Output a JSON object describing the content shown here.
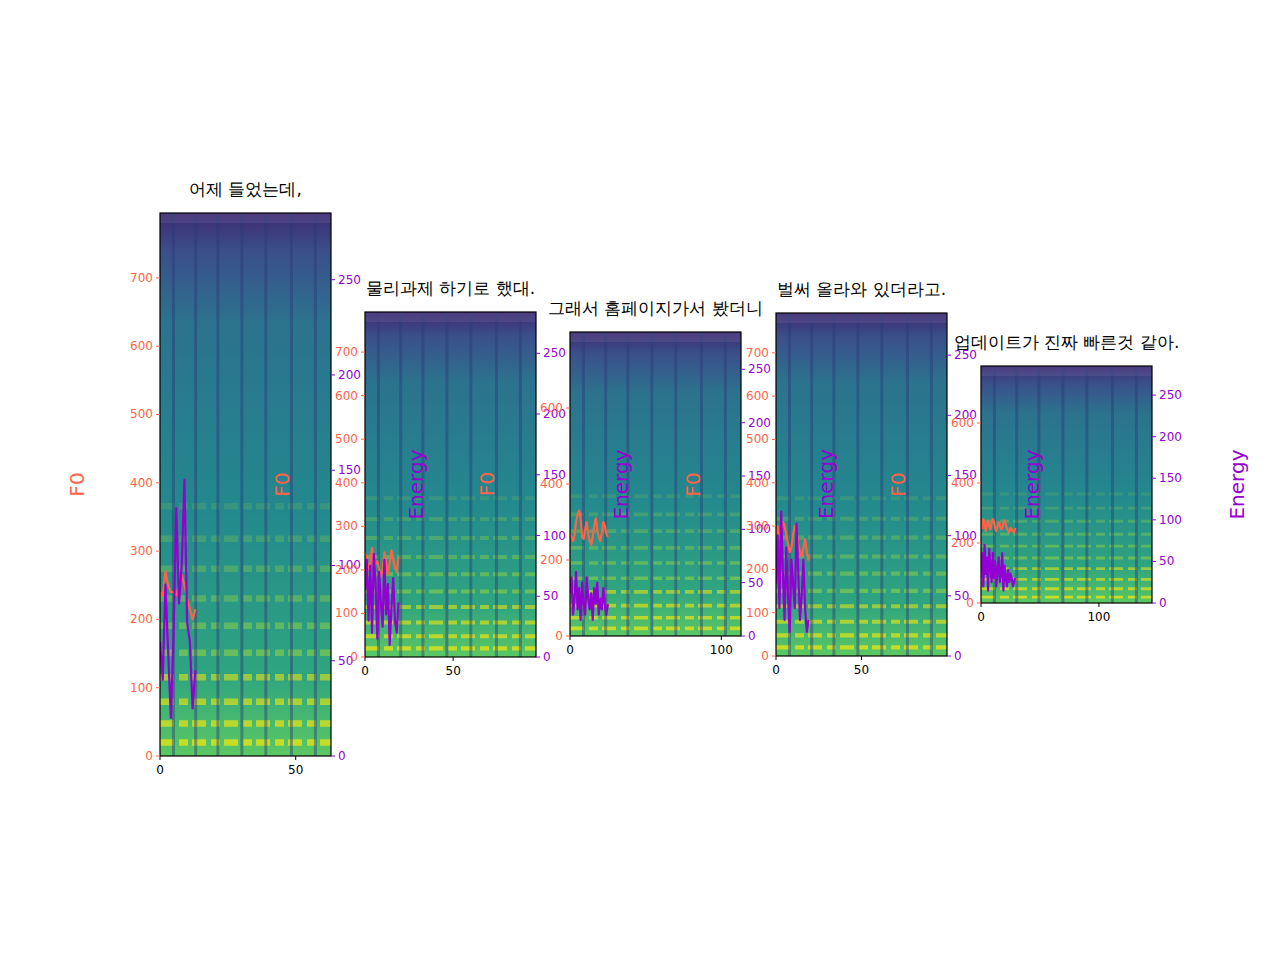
{
  "chart_data": [
    {
      "type": "line",
      "title": "어제 들었는데,",
      "xlim": [
        0,
        63
      ],
      "xticks": [
        0,
        50
      ],
      "ylim": [
        0,
        795
      ],
      "yticks": [
        0,
        100,
        200,
        300,
        400,
        500,
        600,
        700
      ],
      "y2lim": [
        0,
        285
      ],
      "y2ticks": [
        0,
        50,
        100,
        150,
        200,
        250
      ],
      "series": [
        {
          "name": "F0",
          "color": "#ff6347",
          "values": [
            240,
            235,
            270,
            250,
            240,
            240,
            235,
            250,
            265,
            250,
            230,
            215,
            200,
            215
          ]
        },
        {
          "name": "Energy",
          "color": "#9400d3",
          "axis": "y2",
          "values": [
            60,
            40,
            90,
            55,
            20,
            65,
            130,
            80,
            100,
            145,
            70,
            60,
            25,
            45
          ]
        }
      ]
    },
    {
      "type": "line",
      "title": "물리과제 하기로 했대.",
      "xlim": [
        0,
        97
      ],
      "xticks": [
        0,
        50
      ],
      "ylim": [
        0,
        792
      ],
      "yticks": [
        0,
        100,
        200,
        300,
        400,
        500,
        600,
        700
      ],
      "y2lim": [
        0,
        284
      ],
      "y2ticks": [
        0,
        50,
        100,
        150,
        200,
        250
      ],
      "series": [
        {
          "name": "F0",
          "color": "#ff6347",
          "values": [
            240,
            225,
            200,
            215,
            250,
            205,
            215,
            220,
            200,
            185,
            200,
            240,
            215,
            190,
            215,
            245,
            225,
            205,
            195,
            230
          ]
        },
        {
          "name": "Energy",
          "color": "#9400d3",
          "axis": "y2",
          "values": [
            55,
            80,
            30,
            75,
            20,
            85,
            60,
            15,
            70,
            45,
            25,
            80,
            35,
            60,
            10,
            40,
            65,
            30,
            20,
            45
          ]
        }
      ]
    },
    {
      "type": "line",
      "title": "그래서 홈페이지가서 봤더니",
      "xlim": [
        0,
        113
      ],
      "xticks": [
        0,
        100
      ],
      "ylim": [
        0,
        800
      ],
      "yticks": [
        0,
        200,
        400,
        600
      ],
      "y2lim": [
        0,
        285
      ],
      "y2ticks": [
        0,
        50,
        100,
        150,
        200,
        250
      ],
      "series": [
        {
          "name": "F0",
          "color": "#ff6347",
          "values": [
            270,
            260,
            250,
            265,
            300,
            320,
            330,
            310,
            260,
            255,
            280,
            300,
            270,
            250,
            240,
            260,
            290,
            310,
            280,
            260,
            250,
            270,
            300,
            290,
            270,
            260
          ]
        },
        {
          "name": "Energy",
          "color": "#9400d3",
          "axis": "y2",
          "values": [
            40,
            55,
            20,
            35,
            60,
            25,
            45,
            15,
            50,
            30,
            20,
            55,
            35,
            25,
            40,
            15,
            45,
            30,
            50,
            20,
            35,
            25,
            45,
            30,
            20,
            30
          ]
        }
      ]
    },
    {
      "type": "line",
      "title": "벌써 올라와 있더라고.",
      "xlim": [
        0,
        100
      ],
      "xticks": [
        0,
        50
      ],
      "ylim": [
        0,
        792
      ],
      "yticks": [
        0,
        100,
        200,
        300,
        400,
        500,
        600,
        700
      ],
      "y2lim": [
        0,
        285
      ],
      "y2ticks": [
        0,
        50,
        100,
        150,
        200,
        250
      ],
      "series": [
        {
          "name": "F0",
          "color": "#ff6347",
          "values": [
            280,
            300,
            270,
            290,
            310,
            300,
            280,
            260,
            240,
            250,
            280,
            300,
            290,
            260,
            240,
            230,
            250,
            270,
            240,
            220
          ]
        },
        {
          "name": "Energy",
          "color": "#9400d3",
          "axis": "y2",
          "values": [
            60,
            100,
            40,
            120,
            70,
            30,
            90,
            50,
            20,
            80,
            60,
            40,
            110,
            70,
            30,
            50,
            80,
            40,
            20,
            30
          ]
        }
      ]
    },
    {
      "type": "line",
      "title": "업데이트가 진짜 빠른것 같아.",
      "xlim": [
        0,
        145
      ],
      "xticks": [
        0,
        100
      ],
      "ylim": [
        0,
        790
      ],
      "yticks": [
        0,
        200,
        400,
        600
      ],
      "y2lim": [
        0,
        285
      ],
      "y2ticks": [
        0,
        50,
        100,
        150,
        200,
        250
      ],
      "series": [
        {
          "name": "F0",
          "color": "#ff6347",
          "values": [
            270,
            250,
            280,
            265,
            240,
            260,
            275,
            255,
            245,
            265,
            280,
            270,
            250,
            240,
            255,
            270,
            260,
            245,
            250,
            265,
            275,
            260,
            250,
            240,
            235,
            250,
            245,
            240,
            235,
            250
          ]
        },
        {
          "name": "Energy",
          "color": "#9400d3",
          "axis": "y2",
          "values": [
            40,
            60,
            20,
            70,
            35,
            55,
            15,
            65,
            45,
            25,
            60,
            30,
            50,
            20,
            40,
            55,
            25,
            35,
            60,
            15,
            45,
            30,
            20,
            40,
            25,
            35,
            30,
            20,
            25,
            30
          ]
        }
      ]
    }
  ]
}
